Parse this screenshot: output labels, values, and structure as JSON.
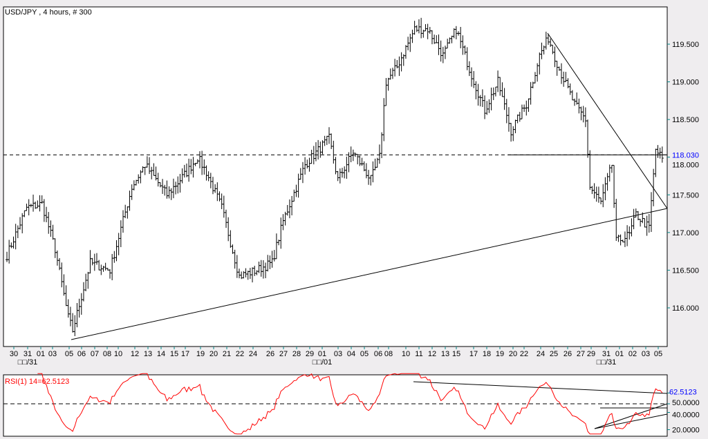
{
  "chart_data": [
    {
      "type": "ohlc",
      "title": "USD/JPY , 4 hours, # 300",
      "ylim": [
        115.55,
        119.95
      ],
      "y_ticks": [
        "116.000",
        "116.500",
        "117.000",
        "117.500",
        "118.000",
        "118.500",
        "119.000",
        "119.500"
      ],
      "y_tick_values": [
        116,
        116.5,
        117,
        117.5,
        118,
        118.5,
        119,
        119.5
      ],
      "current_price": "118.030",
      "current_value": 118.03,
      "x_tick_labels": [
        "30",
        "31",
        "01",
        "03",
        "05",
        "06",
        "07",
        "08",
        "10",
        "12",
        "13",
        "14",
        "15",
        "17",
        "19",
        "20",
        "21",
        "22",
        "24",
        "26",
        "27",
        "28",
        "29",
        "01",
        "03",
        "04",
        "05",
        "06",
        "08",
        "10",
        "11",
        "12",
        "13",
        "15",
        "17",
        "18",
        "19",
        "20",
        "22",
        "24",
        "25",
        "26",
        "27",
        "29",
        "31",
        "01",
        "02",
        "03",
        "05"
      ],
      "month_labels": [
        "□□/31",
        "□□/01",
        "□□/31"
      ],
      "close_keypoints_bar_price": [
        [
          0,
          116.7
        ],
        [
          9,
          117.33
        ],
        [
          16,
          117.38
        ],
        [
          22,
          116.78
        ],
        [
          28,
          115.87
        ],
        [
          30,
          115.7
        ],
        [
          38,
          116.6
        ],
        [
          47,
          116.5
        ],
        [
          57,
          117.6
        ],
        [
          63,
          117.9
        ],
        [
          73,
          117.5
        ],
        [
          82,
          117.8
        ],
        [
          87,
          118.0
        ],
        [
          91,
          117.8
        ],
        [
          98,
          117.33
        ],
        [
          106,
          116.42
        ],
        [
          114,
          116.5
        ],
        [
          121,
          116.6
        ],
        [
          126,
          117.15
        ],
        [
          136,
          117.9
        ],
        [
          147,
          118.25
        ],
        [
          151,
          117.7
        ],
        [
          158,
          118.07
        ],
        [
          166,
          117.7
        ],
        [
          170,
          118.0
        ],
        [
          173,
          119.0
        ],
        [
          178,
          119.2
        ],
        [
          186,
          119.7
        ],
        [
          192,
          119.7
        ],
        [
          199,
          119.35
        ],
        [
          205,
          119.7
        ],
        [
          211,
          119.17
        ],
        [
          218,
          118.62
        ],
        [
          224,
          119.0
        ],
        [
          230,
          118.35
        ],
        [
          237,
          118.7
        ],
        [
          243,
          119.35
        ],
        [
          247,
          119.58
        ],
        [
          252,
          119.17
        ],
        [
          259,
          118.7
        ],
        [
          264,
          118.5
        ],
        [
          266,
          117.6
        ],
        [
          271,
          117.4
        ],
        [
          276,
          117.9
        ],
        [
          278,
          116.88
        ],
        [
          284,
          116.97
        ],
        [
          287,
          117.24
        ],
        [
          293,
          117.06
        ],
        [
          296,
          118.1
        ],
        [
          299,
          117.98
        ]
      ]
    },
    {
      "type": "line",
      "title": "RSI(1) 14=62.5123",
      "current_label": "62.5123",
      "current_value": 62.5123,
      "y_ticks": [
        "20.0000",
        "40.0000",
        "50.0000"
      ],
      "y_tick_values": [
        20,
        40,
        50
      ],
      "reference_level": 50,
      "line_color": "#ff0000"
    }
  ],
  "colors": {
    "bars": "#000000",
    "rsi": "#ff0000",
    "price_label": "#0000ff",
    "panel_bg": "#ffffff",
    "frame_bg": "#efedef"
  }
}
